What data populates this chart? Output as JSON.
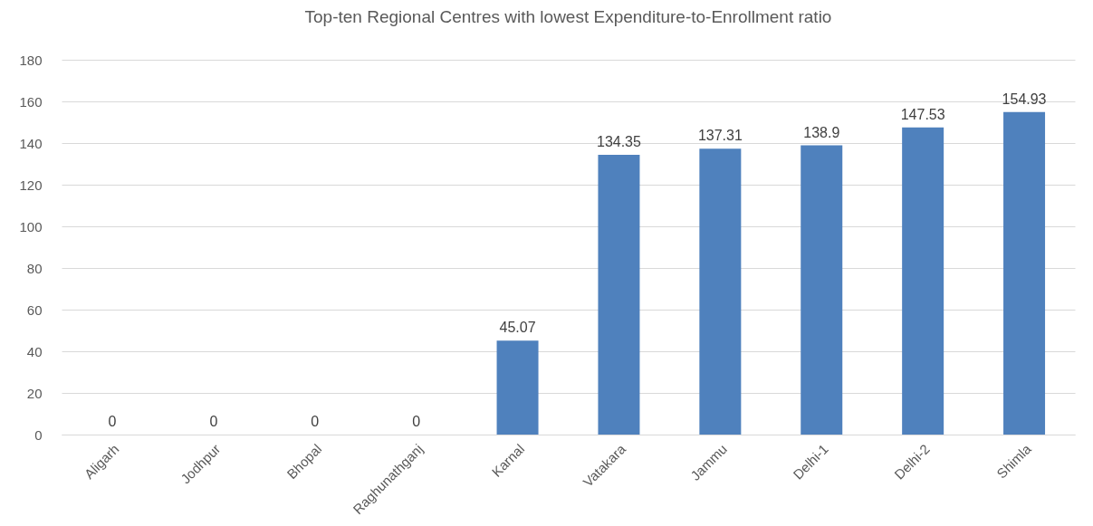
{
  "chart_data": {
    "type": "bar",
    "title": "Top-ten Regional Centres with lowest Expenditure-to-Enrollment ratio",
    "categories": [
      "Aligarh",
      "Jodhpur",
      "Bhopal",
      "Raghunathganj",
      "Karnal",
      "Vatakara",
      "Jammu",
      "Delhi-1",
      "Delhi-2",
      "Shimla"
    ],
    "values": [
      0,
      0,
      0,
      0,
      45.07,
      134.35,
      137.31,
      138.9,
      147.53,
      154.93
    ],
    "color": "#4f81bd",
    "ylim": [
      0,
      180
    ],
    "yticks": [
      0,
      20,
      40,
      60,
      80,
      100,
      120,
      140,
      160,
      180
    ],
    "grid": "y",
    "data_labels": true
  }
}
